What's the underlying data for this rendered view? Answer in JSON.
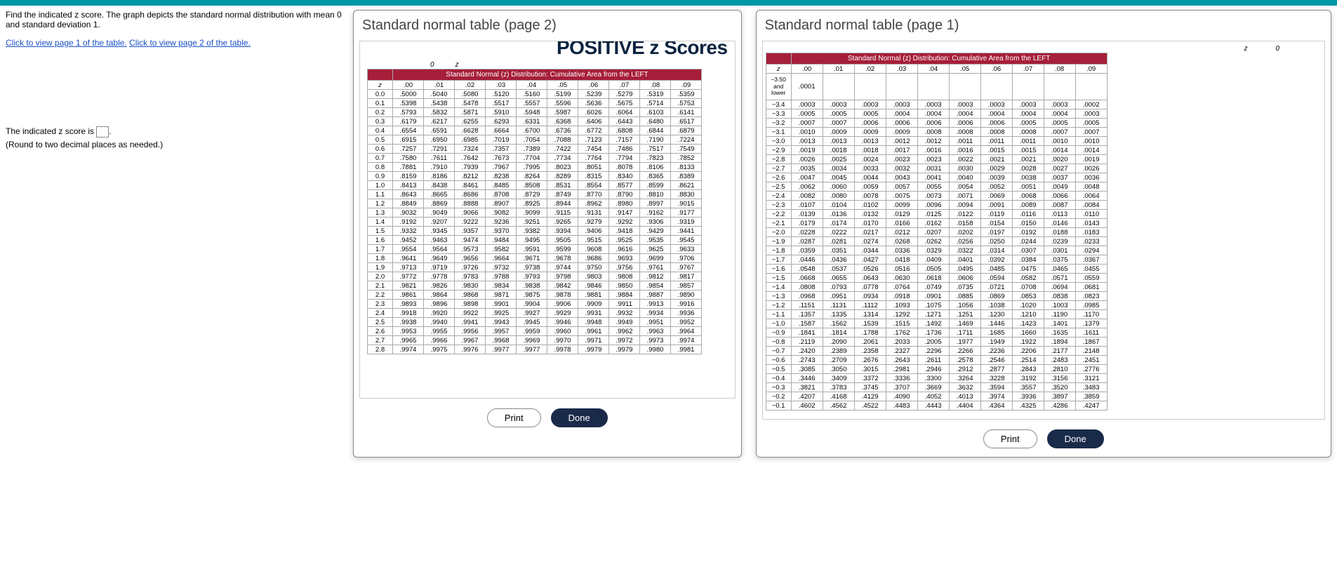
{
  "top_bar_color": "#0097a7",
  "question": {
    "prompt": "Find the indicated z score. The graph depicts the standard normal distribution with mean 0 and standard deviation 1.",
    "link1": "Click to view page 1 of the table.",
    "link2": "Click to view page 2 of the table.",
    "answer_label_pre": "The indicated z score is ",
    "answer_label_post": ".",
    "round_note": "(Round to two decimal places as needed.)"
  },
  "modal2": {
    "title": "Standard normal table (page 2)",
    "header": "POSITIVE z Scores",
    "banner": "Standard Normal (z) Distribution: Cumulative Area from the LEFT",
    "axis_labels": [
      "0",
      "z"
    ],
    "col_headers": [
      "z",
      ".00",
      ".01",
      ".02",
      ".03",
      ".04",
      ".05",
      ".06",
      ".07",
      ".08",
      ".09"
    ],
    "rows": [
      [
        "0.0",
        ".5000",
        ".5040",
        ".5080",
        ".5120",
        ".5160",
        ".5199",
        ".5239",
        ".5279",
        ".5319",
        ".5359"
      ],
      [
        "0.1",
        ".5398",
        ".5438",
        ".5478",
        ".5517",
        ".5557",
        ".5596",
        ".5636",
        ".5675",
        ".5714",
        ".5753"
      ],
      [
        "0.2",
        ".5793",
        ".5832",
        ".5871",
        ".5910",
        ".5948",
        ".5987",
        ".6026",
        ".6064",
        ".6103",
        ".6141"
      ],
      [
        "0.3",
        ".6179",
        ".6217",
        ".6255",
        ".6293",
        ".6331",
        ".6368",
        ".6406",
        ".6443",
        ".6480",
        ".6517"
      ],
      [
        "0.4",
        ".6554",
        ".6591",
        ".6628",
        ".6664",
        ".6700",
        ".6736",
        ".6772",
        ".6808",
        ".6844",
        ".6879"
      ],
      [
        "0.5",
        ".6915",
        ".6950",
        ".6985",
        ".7019",
        ".7054",
        ".7088",
        ".7123",
        ".7157",
        ".7190",
        ".7224"
      ],
      [
        "0.6",
        ".7257",
        ".7291",
        ".7324",
        ".7357",
        ".7389",
        ".7422",
        ".7454",
        ".7486",
        ".7517",
        ".7549"
      ],
      [
        "0.7",
        ".7580",
        ".7611",
        ".7642",
        ".7673",
        ".7704",
        ".7734",
        ".7764",
        ".7794",
        ".7823",
        ".7852"
      ],
      [
        "0.8",
        ".7881",
        ".7910",
        ".7939",
        ".7967",
        ".7995",
        ".8023",
        ".8051",
        ".8078",
        ".8106",
        ".8133"
      ],
      [
        "0.9",
        ".8159",
        ".8186",
        ".8212",
        ".8238",
        ".8264",
        ".8289",
        ".8315",
        ".8340",
        ".8365",
        ".8389"
      ],
      [
        "1.0",
        ".8413",
        ".8438",
        ".8461",
        ".8485",
        ".8508",
        ".8531",
        ".8554",
        ".8577",
        ".8599",
        ".8621"
      ],
      [
        "1.1",
        ".8643",
        ".8665",
        ".8686",
        ".8708",
        ".8729",
        ".8749",
        ".8770",
        ".8790",
        ".8810",
        ".8830"
      ],
      [
        "1.2",
        ".8849",
        ".8869",
        ".8888",
        ".8907",
        ".8925",
        ".8944",
        ".8962",
        ".8980",
        ".8997",
        ".9015"
      ],
      [
        "1.3",
        ".9032",
        ".9049",
        ".9066",
        ".9082",
        ".9099",
        ".9115",
        ".9131",
        ".9147",
        ".9162",
        ".9177"
      ],
      [
        "1.4",
        ".9192",
        ".9207",
        ".9222",
        ".9236",
        ".9251",
        ".9265",
        ".9279",
        ".9292",
        ".9306",
        ".9319"
      ],
      [
        "1.5",
        ".9332",
        ".9345",
        ".9357",
        ".9370",
        ".9382",
        ".9394",
        ".9406",
        ".9418",
        ".9429",
        ".9441"
      ],
      [
        "1.6",
        ".9452",
        ".9463",
        ".9474",
        ".9484",
        ".9495",
        ".9505",
        ".9515",
        ".9525",
        ".9535",
        ".9545"
      ],
      [
        "1.7",
        ".9554",
        ".9564",
        ".9573",
        ".9582",
        ".9591",
        ".9599",
        ".9608",
        ".9616",
        ".9625",
        ".9633"
      ],
      [
        "1.8",
        ".9641",
        ".9649",
        ".9656",
        ".9664",
        ".9671",
        ".9678",
        ".9686",
        ".9693",
        ".9699",
        ".9706"
      ],
      [
        "1.9",
        ".9713",
        ".9719",
        ".9726",
        ".9732",
        ".9738",
        ".9744",
        ".9750",
        ".9756",
        ".9761",
        ".9767"
      ],
      [
        "2.0",
        ".9772",
        ".9778",
        ".9783",
        ".9788",
        ".9793",
        ".9798",
        ".9803",
        ".9808",
        ".9812",
        ".9817"
      ],
      [
        "2.1",
        ".9821",
        ".9826",
        ".9830",
        ".9834",
        ".9838",
        ".9842",
        ".9846",
        ".9850",
        ".9854",
        ".9857"
      ],
      [
        "2.2",
        ".9861",
        ".9864",
        ".9868",
        ".9871",
        ".9875",
        ".9878",
        ".9881",
        ".9884",
        ".9887",
        ".9890"
      ],
      [
        "2.3",
        ".9893",
        ".9896",
        ".9898",
        ".9901",
        ".9904",
        ".9906",
        ".9909",
        ".9911",
        ".9913",
        ".9916"
      ],
      [
        "2.4",
        ".9918",
        ".9920",
        ".9922",
        ".9925",
        ".9927",
        ".9929",
        ".9931",
        ".9932",
        ".9934",
        ".9936"
      ],
      [
        "2.5",
        ".9938",
        ".9940",
        ".9941",
        ".9943",
        ".9945",
        ".9946",
        ".9948",
        ".9949",
        ".9951",
        ".9952"
      ],
      [
        "2.6",
        ".9953",
        ".9955",
        ".9956",
        ".9957",
        ".9959",
        ".9960",
        ".9961",
        ".9962",
        ".9963",
        ".9964"
      ],
      [
        "2.7",
        ".9965",
        ".9966",
        ".9967",
        ".9968",
        ".9969",
        ".9970",
        ".9971",
        ".9972",
        ".9973",
        ".9974"
      ],
      [
        "2.8",
        ".9974",
        ".9975",
        ".9976",
        ".9977",
        ".9977",
        ".9978",
        ".9979",
        ".9979",
        ".9980",
        ".9981"
      ]
    ],
    "print_label": "Print",
    "done_label": "Done"
  },
  "modal1": {
    "title": "Standard normal table (page 1)",
    "banner": "Standard Normal (z) Distribution: Cumulative Area from the LEFT",
    "axis_labels": [
      "z",
      "0"
    ],
    "col_headers": [
      "z",
      ".00",
      ".01",
      ".02",
      ".03",
      ".04",
      ".05",
      ".06",
      ".07",
      ".08",
      ".09"
    ],
    "lower_label": "−3.50 and lower",
    "lower_value": ".0001",
    "rows": [
      [
        "−3.4",
        ".0003",
        ".0003",
        ".0003",
        ".0003",
        ".0003",
        ".0003",
        ".0003",
        ".0003",
        ".0003",
        ".0002"
      ],
      [
        "−3.3",
        ".0005",
        ".0005",
        ".0005",
        ".0004",
        ".0004",
        ".0004",
        ".0004",
        ".0004",
        ".0004",
        ".0003"
      ],
      [
        "−3.2",
        ".0007",
        ".0007",
        ".0006",
        ".0006",
        ".0006",
        ".0006",
        ".0006",
        ".0005",
        ".0005",
        ".0005"
      ],
      [
        "−3.1",
        ".0010",
        ".0009",
        ".0009",
        ".0009",
        ".0008",
        ".0008",
        ".0008",
        ".0008",
        ".0007",
        ".0007"
      ],
      [
        "−3.0",
        ".0013",
        ".0013",
        ".0013",
        ".0012",
        ".0012",
        ".0011",
        ".0011",
        ".0011",
        ".0010",
        ".0010"
      ],
      [
        "−2.9",
        ".0019",
        ".0018",
        ".0018",
        ".0017",
        ".0016",
        ".0016",
        ".0015",
        ".0015",
        ".0014",
        ".0014"
      ],
      [
        "−2.8",
        ".0026",
        ".0025",
        ".0024",
        ".0023",
        ".0023",
        ".0022",
        ".0021",
        ".0021",
        ".0020",
        ".0019"
      ],
      [
        "−2.7",
        ".0035",
        ".0034",
        ".0033",
        ".0032",
        ".0031",
        ".0030",
        ".0029",
        ".0028",
        ".0027",
        ".0026"
      ],
      [
        "−2.6",
        ".0047",
        ".0045",
        ".0044",
        ".0043",
        ".0041",
        ".0040",
        ".0039",
        ".0038",
        ".0037",
        ".0036"
      ],
      [
        "−2.5",
        ".0062",
        ".0060",
        ".0059",
        ".0057",
        ".0055",
        ".0054",
        ".0052",
        ".0051",
        ".0049",
        ".0048"
      ],
      [
        "−2.4",
        ".0082",
        ".0080",
        ".0078",
        ".0075",
        ".0073",
        ".0071",
        ".0069",
        ".0068",
        ".0066",
        ".0064"
      ],
      [
        "−2.3",
        ".0107",
        ".0104",
        ".0102",
        ".0099",
        ".0096",
        ".0094",
        ".0091",
        ".0089",
        ".0087",
        ".0084"
      ],
      [
        "−2.2",
        ".0139",
        ".0136",
        ".0132",
        ".0129",
        ".0125",
        ".0122",
        ".0119",
        ".0116",
        ".0113",
        ".0110"
      ],
      [
        "−2.1",
        ".0179",
        ".0174",
        ".0170",
        ".0166",
        ".0162",
        ".0158",
        ".0154",
        ".0150",
        ".0146",
        ".0143"
      ],
      [
        "−2.0",
        ".0228",
        ".0222",
        ".0217",
        ".0212",
        ".0207",
        ".0202",
        ".0197",
        ".0192",
        ".0188",
        ".0183"
      ],
      [
        "−1.9",
        ".0287",
        ".0281",
        ".0274",
        ".0268",
        ".0262",
        ".0256",
        ".0250",
        ".0244",
        ".0239",
        ".0233"
      ],
      [
        "−1.8",
        ".0359",
        ".0351",
        ".0344",
        ".0336",
        ".0329",
        ".0322",
        ".0314",
        ".0307",
        ".0301",
        ".0294"
      ],
      [
        "−1.7",
        ".0446",
        ".0436",
        ".0427",
        ".0418",
        ".0409",
        ".0401",
        ".0392",
        ".0384",
        ".0375",
        ".0367"
      ],
      [
        "−1.6",
        ".0548",
        ".0537",
        ".0526",
        ".0516",
        ".0505",
        ".0495",
        ".0485",
        ".0475",
        ".0465",
        ".0455"
      ],
      [
        "−1.5",
        ".0668",
        ".0655",
        ".0643",
        ".0630",
        ".0618",
        ".0606",
        ".0594",
        ".0582",
        ".0571",
        ".0559"
      ],
      [
        "−1.4",
        ".0808",
        ".0793",
        ".0778",
        ".0764",
        ".0749",
        ".0735",
        ".0721",
        ".0708",
        ".0694",
        ".0681"
      ],
      [
        "−1.3",
        ".0968",
        ".0951",
        ".0934",
        ".0918",
        ".0901",
        ".0885",
        ".0869",
        ".0853",
        ".0838",
        ".0823"
      ],
      [
        "−1.2",
        ".1151",
        ".1131",
        ".1112",
        ".1093",
        ".1075",
        ".1056",
        ".1038",
        ".1020",
        ".1003",
        ".0985"
      ],
      [
        "−1.1",
        ".1357",
        ".1335",
        ".1314",
        ".1292",
        ".1271",
        ".1251",
        ".1230",
        ".1210",
        ".1190",
        ".1170"
      ],
      [
        "−1.0",
        ".1587",
        ".1562",
        ".1539",
        ".1515",
        ".1492",
        ".1469",
        ".1446",
        ".1423",
        ".1401",
        ".1379"
      ],
      [
        "−0.9",
        ".1841",
        ".1814",
        ".1788",
        ".1762",
        ".1736",
        ".1711",
        ".1685",
        ".1660",
        ".1635",
        ".1611"
      ],
      [
        "−0.8",
        ".2119",
        ".2090",
        ".2061",
        ".2033",
        ".2005",
        ".1977",
        ".1949",
        ".1922",
        ".1894",
        ".1867"
      ],
      [
        "−0.7",
        ".2420",
        ".2389",
        ".2358",
        ".2327",
        ".2296",
        ".2266",
        ".2236",
        ".2206",
        ".2177",
        ".2148"
      ],
      [
        "−0.6",
        ".2743",
        ".2709",
        ".2676",
        ".2643",
        ".2611",
        ".2578",
        ".2546",
        ".2514",
        ".2483",
        ".2451"
      ],
      [
        "−0.5",
        ".3085",
        ".3050",
        ".3015",
        ".2981",
        ".2946",
        ".2912",
        ".2877",
        ".2843",
        ".2810",
        ".2776"
      ],
      [
        "−0.4",
        ".3446",
        ".3409",
        ".3372",
        ".3336",
        ".3300",
        ".3264",
        ".3228",
        ".3192",
        ".3156",
        ".3121"
      ],
      [
        "−0.3",
        ".3821",
        ".3783",
        ".3745",
        ".3707",
        ".3669",
        ".3632",
        ".3594",
        ".3557",
        ".3520",
        ".3483"
      ],
      [
        "−0.2",
        ".4207",
        ".4168",
        ".4129",
        ".4090",
        ".4052",
        ".4013",
        ".3974",
        ".3936",
        ".3897",
        ".3859"
      ],
      [
        "−0.1",
        ".4602",
        ".4562",
        ".4522",
        ".4483",
        ".4443",
        ".4404",
        ".4364",
        ".4325",
        ".4286",
        ".4247"
      ]
    ],
    "print_label": "Print",
    "done_label": "Done"
  }
}
